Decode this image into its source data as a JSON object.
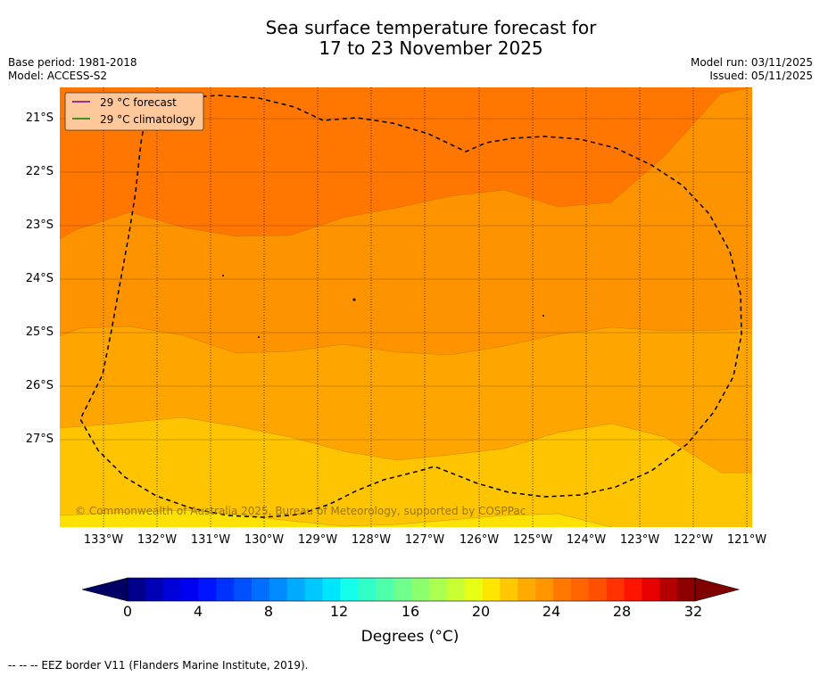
{
  "title": {
    "line1": "Sea surface temperature forecast for",
    "line2": "17 to 23 November 2025"
  },
  "meta": {
    "base_period": "Base period: 1981-2018",
    "model": "Model: ACCESS-S2",
    "model_run": "Model run: 03/11/2025",
    "issued": "Issued: 05/11/2025"
  },
  "map": {
    "lat_labels": [
      "21°S",
      "22°S",
      "23°S",
      "24°S",
      "25°S",
      "26°S",
      "27°S"
    ],
    "lon_labels": [
      "133°W",
      "132°W",
      "131°W",
      "130°W",
      "129°W",
      "128°W",
      "127°W",
      "126°W",
      "125°W",
      "124°W",
      "123°W",
      "122°W",
      "121°W"
    ],
    "legend": {
      "forecast_label": "29 °C  forecast",
      "climatology_label": "29 °C  climatology",
      "forecast_color": "#800080",
      "climatology_color": "#008000"
    },
    "copyright": "© Commonwealth of Australia 2025, Bureau of Meteorology, supported by COSPPac",
    "colors": {
      "band_25_26": "#FE9300",
      "band_26_27": "#FF7700",
      "band_24_25": "#FFA500",
      "band_23_24": "#FFC400",
      "band_22_23": "#FFE100",
      "eez_border": "#000000"
    }
  },
  "colorbar": {
    "tick_labels": [
      "0",
      "4",
      "8",
      "12",
      "16",
      "20",
      "24",
      "28",
      "32"
    ],
    "label": "Degrees (°C)",
    "colors": [
      "#00008C",
      "#0000B4",
      "#0000D8",
      "#0000F0",
      "#0014FF",
      "#0032FF",
      "#0050FF",
      "#006EFF",
      "#008CFF",
      "#00AAFF",
      "#00C8FF",
      "#00E6FF",
      "#14FFEB",
      "#32FFC8",
      "#50FFAA",
      "#6EFF8C",
      "#8CFF6E",
      "#AAFF50",
      "#C8FF32",
      "#E6FF14",
      "#FFE600",
      "#FFC800",
      "#FFAA00",
      "#FF9600",
      "#FF7800",
      "#FF6400",
      "#FF5000",
      "#FF3200",
      "#FF1400",
      "#E60000",
      "#B40000",
      "#8C0000"
    ],
    "below_color": "#000064",
    "above_color": "#800000"
  },
  "footer": "--  --  -- EEZ border V11 (Flanders Marine Institute, 2019)."
}
